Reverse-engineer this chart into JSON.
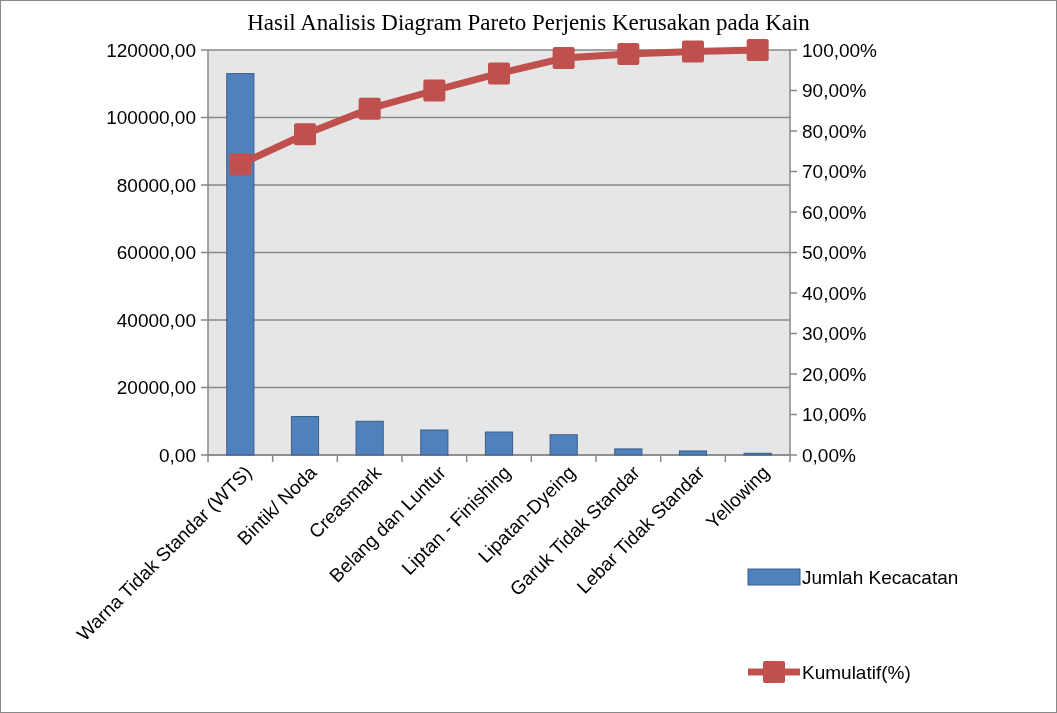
{
  "chart_data": {
    "type": "bar",
    "title": "Hasil Analisis Diagram Pareto Perjenis Kerusakan pada Kain",
    "categories": [
      "Warna Tidak Standar (WTS)",
      "Bintik/ Noda",
      "Creasmark",
      "Belang dan Luntur",
      "Liptan - Finishing",
      "Lipatan-Dyeing",
      "Garuk Tidak Standar",
      "Lebar Tidak Standar",
      "Yellowing"
    ],
    "series": [
      {
        "name": "Jumlah Kecacatan",
        "color": "#4f81bd",
        "values": [
          113000,
          11400,
          10000,
          7400,
          6800,
          6000,
          1800,
          1200,
          500
        ]
      },
      {
        "name": "Kumulatif(%)",
        "type": "line",
        "axis": "y2",
        "color": "#c0504d",
        "marker": "square",
        "values": [
          71.8,
          79.2,
          85.5,
          90,
          94.2,
          98,
          99,
          99.6,
          100
        ]
      }
    ],
    "ylim": [
      0,
      120000
    ],
    "yticks": [
      {
        "value": 0,
        "label": "0,00"
      },
      {
        "value": 20000,
        "label": "20000,00"
      },
      {
        "value": 40000,
        "label": "40000,00"
      },
      {
        "value": 60000,
        "label": "60000,00"
      },
      {
        "value": 80000,
        "label": "80000,00"
      },
      {
        "value": 100000,
        "label": "100000,00"
      },
      {
        "value": 120000,
        "label": "120000,00"
      }
    ],
    "y2lim": [
      0,
      100
    ],
    "y2ticks": [
      {
        "value": 0,
        "label": "0,00%"
      },
      {
        "value": 10,
        "label": "10,00%"
      },
      {
        "value": 20,
        "label": "20,00%"
      },
      {
        "value": 30,
        "label": "30,00%"
      },
      {
        "value": 40,
        "label": "40,00%"
      },
      {
        "value": 50,
        "label": "50,00%"
      },
      {
        "value": 60,
        "label": "60,00%"
      },
      {
        "value": 70,
        "label": "70,00%"
      },
      {
        "value": 80,
        "label": "80,00%"
      },
      {
        "value": 90,
        "label": "90,00%"
      },
      {
        "value": 100,
        "label": "100,00%"
      }
    ],
    "grid": "y",
    "legend": "right"
  }
}
